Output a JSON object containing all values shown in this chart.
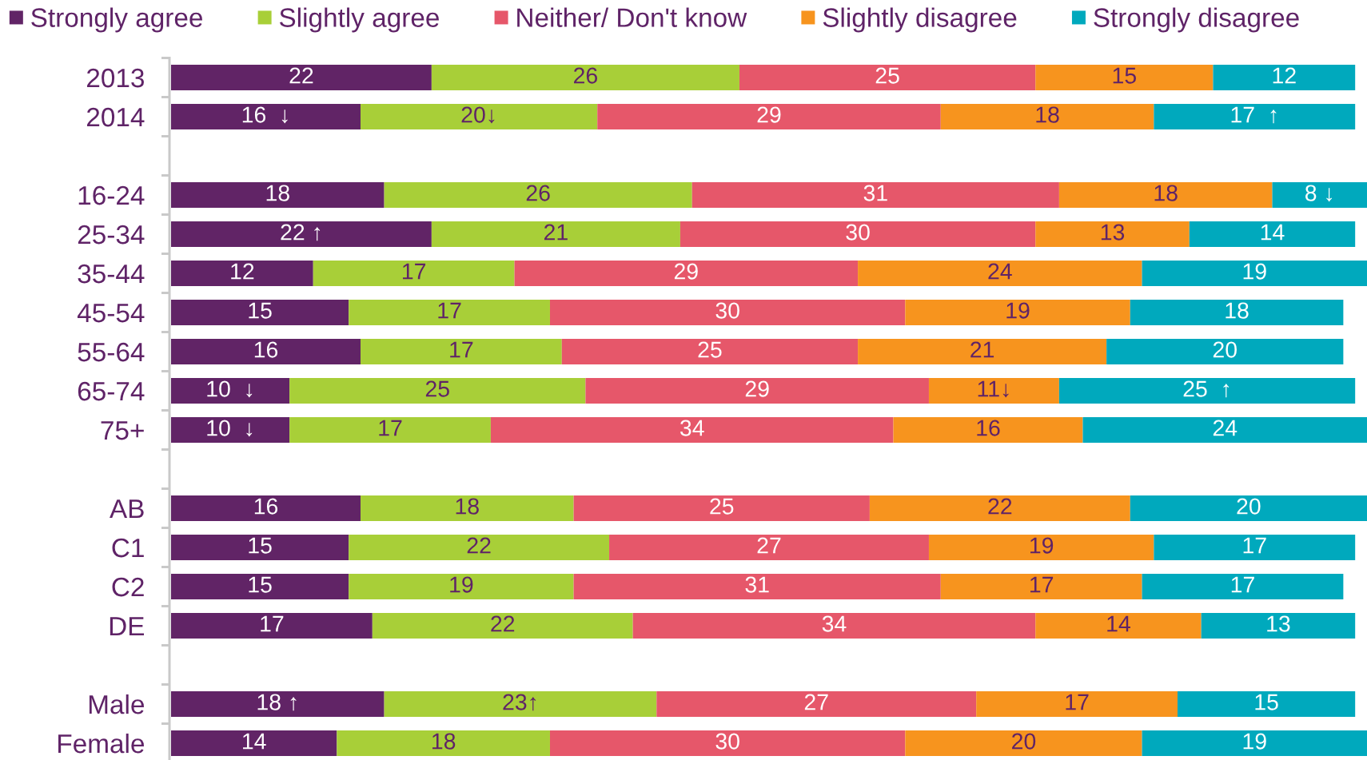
{
  "chart_data": {
    "type": "bar",
    "orientation": "horizontal",
    "stacked": true,
    "legend": "top",
    "tick_labels": "y",
    "categories": [
      "2013",
      "2014",
      null,
      "16-24",
      "25-34",
      "35-44",
      "45-54",
      "55-64",
      "65-74",
      "75+",
      null,
      "AB",
      "C1",
      "C2",
      "DE",
      null,
      "Male",
      "Female"
    ],
    "series": [
      {
        "name": "Strongly agree",
        "color": "#612466",
        "values": [
          22,
          16,
          null,
          18,
          22,
          12,
          15,
          16,
          10,
          10,
          null,
          16,
          15,
          15,
          17,
          null,
          18,
          14
        ],
        "value_labels": [
          "22",
          "16  ↓",
          null,
          "18",
          "22 ↑",
          "12",
          "15",
          "16",
          "10  ↓",
          "10  ↓",
          null,
          "16",
          "15",
          "15",
          "17",
          null,
          "18 ↑",
          "14"
        ]
      },
      {
        "name": "Slightly agree",
        "color": "#a8cf38",
        "values": [
          26,
          20,
          null,
          26,
          21,
          17,
          17,
          17,
          25,
          17,
          null,
          18,
          22,
          19,
          22,
          null,
          23,
          18
        ],
        "value_labels": [
          "26",
          "20↓",
          null,
          "26",
          "21",
          "17",
          "17",
          "17",
          "25",
          "17",
          null,
          "18",
          "22",
          "19",
          "22",
          null,
          "23↑",
          "18"
        ]
      },
      {
        "name": "Neither/ Don't know",
        "color": "#e6576a",
        "values": [
          25,
          29,
          null,
          31,
          30,
          29,
          30,
          25,
          29,
          34,
          null,
          25,
          27,
          31,
          34,
          null,
          27,
          30
        ],
        "value_labels": [
          "25",
          "29",
          null,
          "31",
          "30",
          "29",
          "30",
          "25",
          "29",
          "34",
          null,
          "25",
          "27",
          "31",
          "34",
          null,
          "27",
          "30"
        ]
      },
      {
        "name": "Slightly disagree",
        "color": "#f7941e",
        "values": [
          15,
          18,
          null,
          18,
          13,
          24,
          19,
          21,
          11,
          16,
          null,
          22,
          19,
          17,
          14,
          null,
          17,
          20
        ],
        "value_labels": [
          "15",
          "18",
          null,
          "18",
          "13",
          "24",
          "19",
          "21",
          "11↓",
          "16",
          null,
          "22",
          "19",
          "17",
          "14",
          null,
          "17",
          "20"
        ]
      },
      {
        "name": "Strongly disagree",
        "color": "#00a9bd",
        "values": [
          12,
          17,
          null,
          8,
          14,
          19,
          18,
          20,
          25,
          24,
          null,
          20,
          17,
          17,
          13,
          null,
          15,
          19
        ],
        "value_labels": [
          "12",
          "17  ↑",
          null,
          "8 ↓",
          "14",
          "19",
          "18",
          "20",
          "25  ↑",
          "24",
          null,
          "20",
          "17",
          "17",
          "13",
          null,
          "15",
          "19"
        ]
      }
    ]
  }
}
